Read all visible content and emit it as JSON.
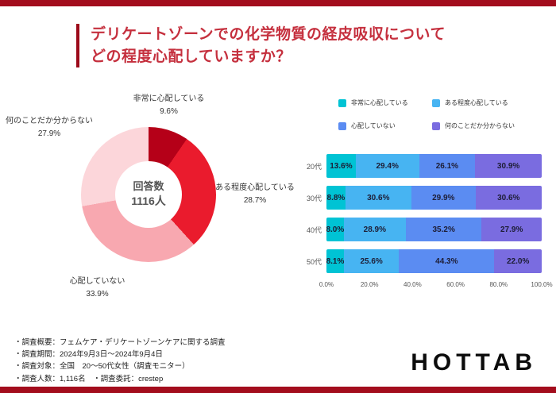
{
  "accent_color": "#a30d1d",
  "header": {
    "title_line1": "デリケートゾーンでの化学物質の経皮吸収について",
    "title_line2": "どの程度心配していますか？"
  },
  "chart_data": [
    {
      "type": "pie",
      "donut": true,
      "center": {
        "label": "回答数",
        "value": "1116人"
      },
      "segments": [
        {
          "label": "非常に心配している",
          "value": 9.6,
          "value_label": "9.6%",
          "color": "#b50018"
        },
        {
          "label": "ある程度心配している",
          "value": 28.7,
          "value_label": "28.7%",
          "color": "#ea1b2d"
        },
        {
          "label": "心配していない",
          "value": 33.9,
          "value_label": "33.9%",
          "color": "#f8a8b0"
        },
        {
          "label": "何のことだか分からない",
          "value": 27.9,
          "value_label": "27.9%",
          "color": "#fcd6da"
        }
      ]
    },
    {
      "type": "bar",
      "stacked": true,
      "orientation": "horizontal",
      "categories": [
        "20代",
        "30代",
        "40代",
        "50代"
      ],
      "series": [
        {
          "name": "非常に心配している",
          "color": "#00c3d4",
          "values": [
            13.6,
            8.8,
            8.0,
            8.1
          ]
        },
        {
          "name": "ある程度心配している",
          "color": "#47b4f2",
          "values": [
            29.4,
            30.6,
            28.9,
            25.6
          ]
        },
        {
          "name": "心配していない",
          "color": "#5b8cf2",
          "values": [
            26.1,
            29.9,
            35.2,
            44.3
          ]
        },
        {
          "name": "何のことだか分からない",
          "color": "#7a6ce0",
          "values": [
            30.9,
            30.6,
            27.9,
            22.0
          ]
        }
      ],
      "x_ticks": [
        "0.0%",
        "20.0%",
        "40.0%",
        "60.0%",
        "80.0%",
        "100.0%"
      ],
      "xlim": [
        0,
        100
      ],
      "legend_position": "top",
      "grid": false
    }
  ],
  "footer": {
    "notes": [
      "・調査概要：フェムケア・デリケートゾーンケアに関する調査",
      "・調査期間：2024年9月3日～2024年9月4日",
      "・調査対象：全国　20～50代女性（調査モニター）",
      "・調査人数：1,116名　・調査委託：crestep"
    ],
    "logo": "HOTTAB"
  }
}
